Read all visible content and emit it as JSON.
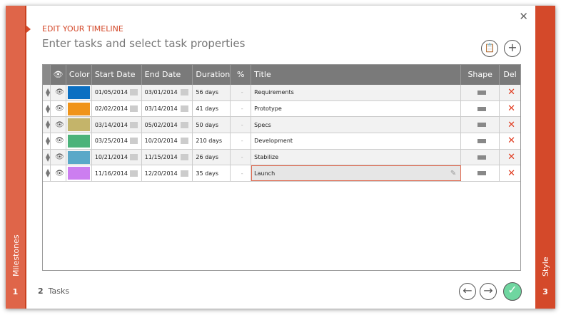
{
  "header": {
    "kicker": "EDIT YOUR TIMELINE",
    "subtitle": "Enter tasks and select task properties"
  },
  "left_panel": {
    "label": "Milestones",
    "step": "1"
  },
  "right_panel": {
    "label": "Style",
    "step": "3"
  },
  "footer": {
    "step": "2",
    "label": "Tasks"
  },
  "columns": [
    "",
    "Color",
    "Start Date",
    "End Date",
    "Duration",
    "%",
    "Title",
    "Shape",
    "Del"
  ],
  "rows": [
    {
      "color": "#0a6fc2",
      "start": "01/05/2014",
      "end": "03/01/2014",
      "duration": "56 days",
      "pct": "-",
      "title": "Requirements"
    },
    {
      "color": "#f0941a",
      "start": "02/02/2014",
      "end": "03/14/2014",
      "duration": "41 days",
      "pct": "-",
      "title": "Prototype"
    },
    {
      "color": "#c4b46a",
      "start": "03/14/2014",
      "end": "05/02/2014",
      "duration": "50 days",
      "pct": "-",
      "title": "Specs"
    },
    {
      "color": "#4bb37a",
      "start": "03/25/2014",
      "end": "10/20/2014",
      "duration": "210 days",
      "pct": "-",
      "title": "Development"
    },
    {
      "color": "#5aa8c8",
      "start": "10/21/2014",
      "end": "11/15/2014",
      "duration": "26 days",
      "pct": "-",
      "title": "Stabilize"
    },
    {
      "color": "#cc7ef0",
      "start": "11/16/2014",
      "end": "12/20/2014",
      "duration": "35 days",
      "pct": "-",
      "title": "Launch"
    }
  ],
  "colors": {
    "accent": "#d4492a",
    "confirm": "#6fd6a0"
  }
}
